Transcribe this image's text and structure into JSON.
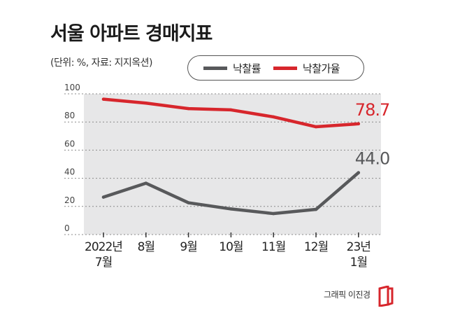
{
  "header": {
    "title": "서울 아파트 경매지표",
    "subtitle": "(단위: %, 자료: 지지옥션)"
  },
  "legend": [
    {
      "label": "낙찰률",
      "color": "#58595b"
    },
    {
      "label": "낙찰가율",
      "color": "#d7262c"
    }
  ],
  "credit": "그래픽 이진경",
  "chart_data": {
    "type": "line",
    "x_labels": [
      [
        "2022년",
        "7월"
      ],
      [
        "8월"
      ],
      [
        "9월"
      ],
      [
        "10월"
      ],
      [
        "11월"
      ],
      [
        "12월"
      ],
      [
        "23년",
        "1월"
      ]
    ],
    "series": [
      {
        "name": "낙찰률",
        "color": "#58595b",
        "values": [
          26.6,
          36.5,
          22.6,
          18.2,
          14.9,
          17.9,
          44.0
        ],
        "end_label": "44.0"
      },
      {
        "name": "낙찰가율",
        "color": "#d7262c",
        "values": [
          96.2,
          93.4,
          89.5,
          88.6,
          83.6,
          76.6,
          78.7
        ],
        "end_label": "78.7"
      }
    ],
    "y_ticks": [
      "100",
      "80",
      "60",
      "40",
      "20",
      "0"
    ],
    "ylim": [
      0,
      100
    ],
    "grid": true,
    "legend_position": "top"
  }
}
